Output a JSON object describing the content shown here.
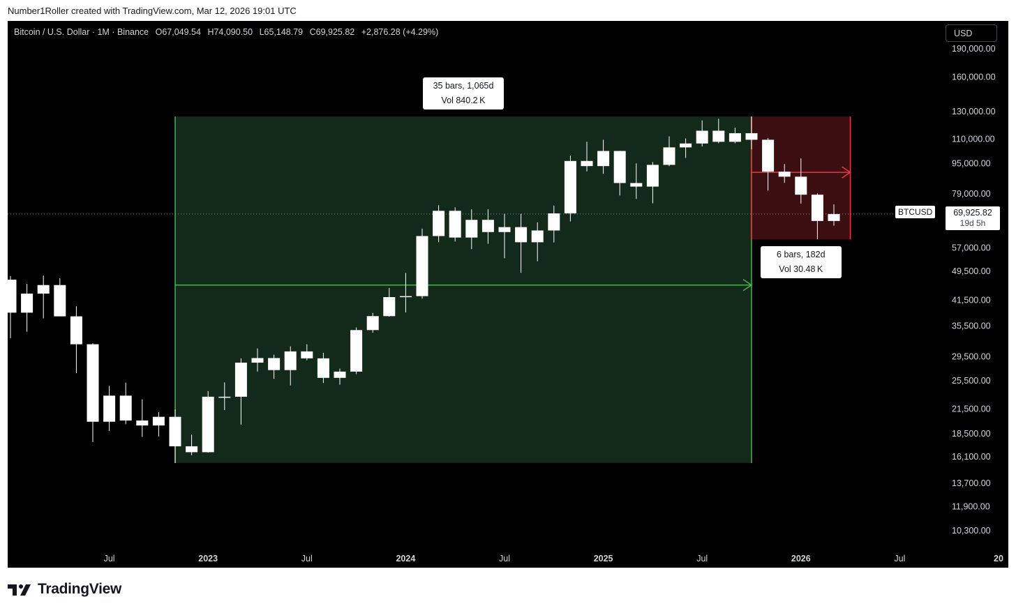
{
  "caption": "Number1Roller created with TradingView.com, Mar 12, 2026 19:01 UTC",
  "legend": {
    "symbol": "Bitcoin / U.S. Dollar · 1M · Binance",
    "open": "O67,049.54",
    "high": "H74,090.50",
    "low": "L65,148.79",
    "close": "C69,925.82",
    "change": "+2,876.28 (+4.29%)"
  },
  "currency_button": "USD",
  "last_price": {
    "symbol_label": "BTCUSD",
    "value": "69,925.82",
    "countdown": "19d 5h"
  },
  "measurements": [
    {
      "line1": "35 bars, 1,065d",
      "line2": "Vol 840.2 K"
    },
    {
      "line1": "6 bars, 182d",
      "line2": "Vol 30.48 K"
    }
  ],
  "footer": {
    "brand": "TradingView"
  },
  "colors": {
    "background": "#000000",
    "candle": "#ffffff",
    "up_range_fill": "#13291a",
    "up_range_line": "#4caf50",
    "down_range_fill": "#3b0f12",
    "down_range_line": "#f23645",
    "axis_text": "#d1d4dc"
  },
  "chart_data": {
    "type": "candlestick",
    "symbol": "BTCUSD",
    "interval": "1M",
    "scale": "log",
    "ylim": [
      9300,
      205000
    ],
    "y_ticks": [
      190000,
      160000,
      130000,
      110000,
      95000,
      79000,
      57000,
      49500,
      41500,
      35500,
      29500,
      25500,
      21500,
      18500,
      16100,
      13700,
      11900,
      10300
    ],
    "y_tick_labels": [
      "190,000.00",
      "160,000.00",
      "130,000.00",
      "110,000.00",
      "95,000.00",
      "79,000.00",
      "57,000.00",
      "49,500.00",
      "41,500.00",
      "35,500.00",
      "29,500.00",
      "25,500.00",
      "21,500.00",
      "18,500.00",
      "16,100.00",
      "13,700.00",
      "11,900.00",
      "10,300.00"
    ],
    "x_ticks": [
      "Jul",
      "2023",
      "Jul",
      "2024",
      "Jul",
      "2025",
      "Jul",
      "2026",
      "Jul",
      "20"
    ],
    "x_tick_months": [
      "2022-07",
      "2023-01",
      "2023-07",
      "2024-01",
      "2024-07",
      "2025-01",
      "2025-07",
      "2026-01",
      "2026-07",
      "2027-01"
    ],
    "candles": [
      {
        "t": "2022-01",
        "o": 47000,
        "h": 48000,
        "l": 33000,
        "c": 38500
      },
      {
        "t": "2022-02",
        "o": 38500,
        "h": 45800,
        "l": 34300,
        "c": 43200
      },
      {
        "t": "2022-03",
        "o": 43200,
        "h": 48200,
        "l": 37200,
        "c": 45500
      },
      {
        "t": "2022-04",
        "o": 45500,
        "h": 47400,
        "l": 37700,
        "c": 37650
      },
      {
        "t": "2022-05",
        "o": 37650,
        "h": 40000,
        "l": 26700,
        "c": 31800
      },
      {
        "t": "2022-06",
        "o": 31800,
        "h": 32000,
        "l": 17600,
        "c": 19900
      },
      {
        "t": "2022-07",
        "o": 19900,
        "h": 24700,
        "l": 18800,
        "c": 23300
      },
      {
        "t": "2022-08",
        "o": 23300,
        "h": 25200,
        "l": 19600,
        "c": 20050
      },
      {
        "t": "2022-09",
        "o": 20050,
        "h": 22800,
        "l": 18150,
        "c": 19450
      },
      {
        "t": "2022-10",
        "o": 19450,
        "h": 21100,
        "l": 18200,
        "c": 20500
      },
      {
        "t": "2022-11",
        "o": 20500,
        "h": 21450,
        "l": 15500,
        "c": 17150
      },
      {
        "t": "2022-12",
        "o": 17150,
        "h": 18400,
        "l": 16250,
        "c": 16550
      },
      {
        "t": "2023-01",
        "o": 16550,
        "h": 23950,
        "l": 16500,
        "c": 23150
      },
      {
        "t": "2023-02",
        "o": 23150,
        "h": 25250,
        "l": 21350,
        "c": 23150
      },
      {
        "t": "2023-03",
        "o": 23150,
        "h": 29200,
        "l": 19550,
        "c": 28450
      },
      {
        "t": "2023-04",
        "o": 28450,
        "h": 31000,
        "l": 26950,
        "c": 29250
      },
      {
        "t": "2023-05",
        "o": 29250,
        "h": 29850,
        "l": 25800,
        "c": 27200
      },
      {
        "t": "2023-06",
        "o": 27200,
        "h": 31400,
        "l": 24800,
        "c": 30450
      },
      {
        "t": "2023-07",
        "o": 30450,
        "h": 31800,
        "l": 28850,
        "c": 29200
      },
      {
        "t": "2023-08",
        "o": 29200,
        "h": 30200,
        "l": 25150,
        "c": 25950
      },
      {
        "t": "2023-09",
        "o": 25950,
        "h": 27450,
        "l": 24900,
        "c": 26950
      },
      {
        "t": "2023-10",
        "o": 26950,
        "h": 35200,
        "l": 26550,
        "c": 34650
      },
      {
        "t": "2023-11",
        "o": 34650,
        "h": 38450,
        "l": 34100,
        "c": 37700
      },
      {
        "t": "2023-12",
        "o": 37700,
        "h": 44700,
        "l": 37600,
        "c": 42300
      },
      {
        "t": "2024-01",
        "o": 42300,
        "h": 48950,
        "l": 38550,
        "c": 42550
      },
      {
        "t": "2024-02",
        "o": 42550,
        "h": 64000,
        "l": 41900,
        "c": 61200
      },
      {
        "t": "2024-03",
        "o": 61200,
        "h": 73750,
        "l": 59000,
        "c": 71300
      },
      {
        "t": "2024-04",
        "o": 71300,
        "h": 72800,
        "l": 59200,
        "c": 60650
      },
      {
        "t": "2024-05",
        "o": 60650,
        "h": 71950,
        "l": 56550,
        "c": 67500
      },
      {
        "t": "2024-06",
        "o": 67500,
        "h": 72000,
        "l": 58400,
        "c": 62700
      },
      {
        "t": "2024-07",
        "o": 62700,
        "h": 70000,
        "l": 53500,
        "c": 64600
      },
      {
        "t": "2024-08",
        "o": 64600,
        "h": 70000,
        "l": 49000,
        "c": 58950
      },
      {
        "t": "2024-09",
        "o": 58950,
        "h": 66500,
        "l": 52550,
        "c": 63300
      },
      {
        "t": "2024-10",
        "o": 63300,
        "h": 73600,
        "l": 58850,
        "c": 70200
      },
      {
        "t": "2024-11",
        "o": 70200,
        "h": 99600,
        "l": 66850,
        "c": 96400
      },
      {
        "t": "2024-12",
        "o": 96400,
        "h": 108300,
        "l": 90500,
        "c": 93450
      },
      {
        "t": "2025-01",
        "o": 93450,
        "h": 109600,
        "l": 89150,
        "c": 102400
      },
      {
        "t": "2025-02",
        "o": 102400,
        "h": 102500,
        "l": 78250,
        "c": 84350
      },
      {
        "t": "2025-03",
        "o": 84350,
        "h": 95000,
        "l": 76600,
        "c": 82550
      },
      {
        "t": "2025-04",
        "o": 82550,
        "h": 95750,
        "l": 74600,
        "c": 94150
      },
      {
        "t": "2025-05",
        "o": 94150,
        "h": 111900,
        "l": 93350,
        "c": 104650
      },
      {
        "t": "2025-06",
        "o": 104650,
        "h": 110500,
        "l": 98200,
        "c": 107150
      },
      {
        "t": "2025-07",
        "o": 107150,
        "h": 123200,
        "l": 105250,
        "c": 115750
      },
      {
        "t": "2025-08",
        "o": 115750,
        "h": 124450,
        "l": 107300,
        "c": 108250
      },
      {
        "t": "2025-09",
        "o": 108250,
        "h": 117900,
        "l": 107250,
        "c": 114050
      },
      {
        "t": "2025-10",
        "o": 114050,
        "h": 126200,
        "l": 103500,
        "c": 109600
      },
      {
        "t": "2025-11",
        "o": 109600,
        "h": 110800,
        "l": 80600,
        "c": 90350
      },
      {
        "t": "2025-12",
        "o": 90350,
        "h": 94600,
        "l": 84450,
        "c": 87650
      },
      {
        "t": "2026-01",
        "o": 87650,
        "h": 97900,
        "l": 74500,
        "c": 78600
      },
      {
        "t": "2026-02",
        "o": 78600,
        "h": 79300,
        "l": 60000,
        "c": 67050
      },
      {
        "t": "2026-03",
        "o": 67049.54,
        "h": 74090.5,
        "l": 65148.79,
        "c": 69925.82
      }
    ],
    "last_price": 69925.82,
    "ranges": [
      {
        "kind": "up",
        "from": "2022-11",
        "to": "2025-10",
        "price_low": 15500,
        "price_high": 126200,
        "arrow_price": 45500,
        "bars": 35,
        "days": 1065,
        "volume": "840.2 K"
      },
      {
        "kind": "down",
        "from": "2025-10",
        "to": "2026-04",
        "price_low": 60000,
        "price_high": 126200,
        "arrow_price": 90000,
        "bars": 6,
        "days": 182,
        "volume": "30.48 K"
      }
    ]
  }
}
